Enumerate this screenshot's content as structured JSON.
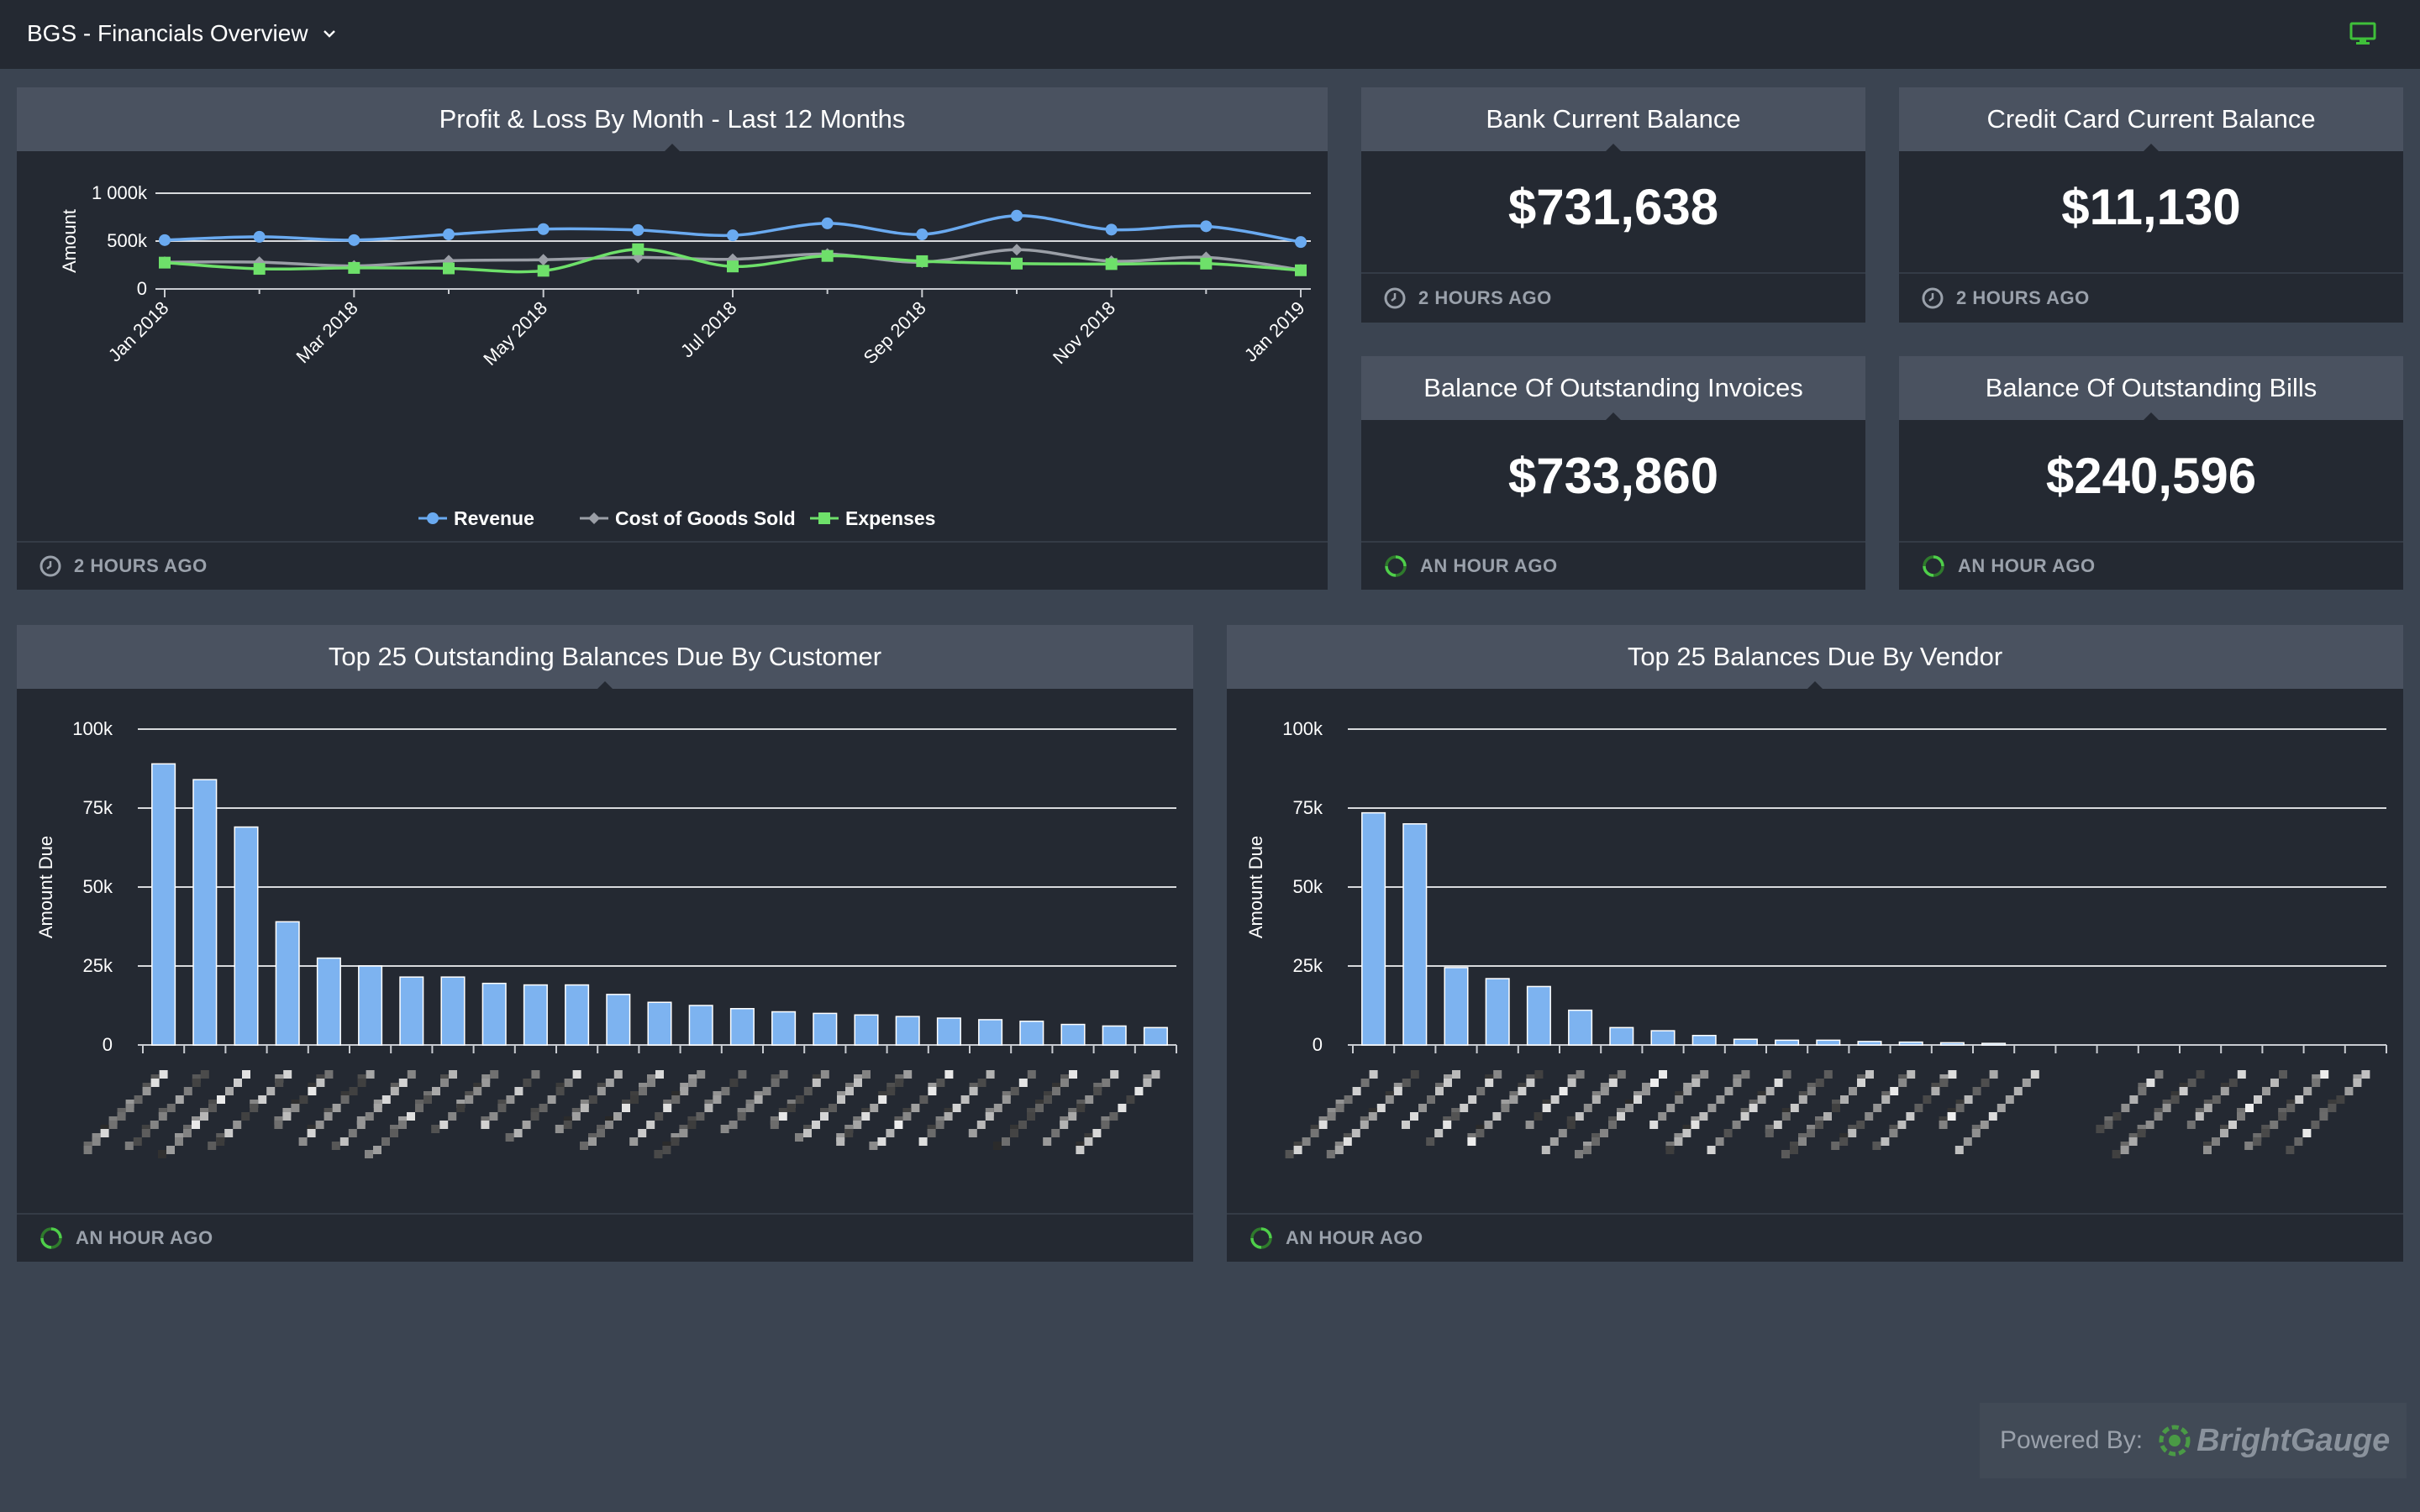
{
  "header": {
    "title": "BGS - Financials Overview"
  },
  "colors": {
    "revenue": "#6aaaf0",
    "cogs": "#9a9ea6",
    "expenses": "#6ee06a",
    "bars": "#7db3f0",
    "card_bg": "#242932",
    "header_bg": "#4a5260",
    "page_bg": "#3b4451",
    "refresh_green": "#4fcf4a"
  },
  "pl_card": {
    "title": "Profit & Loss By Month - Last 12 Months",
    "updated": "2 HOURS AGO",
    "ylabel": "Amount",
    "legend": [
      "Revenue",
      "Cost of Goods Sold",
      "Expenses"
    ]
  },
  "kpis": [
    {
      "title": "Bank Current Balance",
      "value": "$731,638",
      "updated": "2 HOURS AGO",
      "icon": "clock-icon"
    },
    {
      "title": "Credit Card Current Balance",
      "value": "$11,130",
      "updated": "2 HOURS AGO",
      "icon": "clock-icon"
    },
    {
      "title": "Balance Of Outstanding Invoices",
      "value": "$733,860",
      "updated": "AN HOUR AGO",
      "icon": "refresh-icon"
    },
    {
      "title": "Balance Of Outstanding Bills",
      "value": "$240,596",
      "updated": "AN HOUR AGO",
      "icon": "refresh-icon"
    }
  ],
  "customer_card": {
    "title": "Top 25 Outstanding Balances Due By Customer",
    "updated": "AN HOUR AGO",
    "ylabel": "Amount Due"
  },
  "vendor_card": {
    "title": "Top 25 Balances Due By Vendor",
    "updated": "AN HOUR AGO",
    "ylabel": "Amount Due"
  },
  "footer": {
    "powered_by": "Powered By:",
    "brand": "BrightGauge"
  },
  "chart_data": [
    {
      "type": "line",
      "title": "Profit & Loss By Month - Last 12 Months",
      "ylabel": "Amount",
      "xlabel": "",
      "ylim": [
        0,
        1000000
      ],
      "y_ticks": [
        "0",
        "500k",
        "1 000k"
      ],
      "y_tick_values": [
        0,
        500000,
        1000000
      ],
      "x": [
        "Jan 2018",
        "Feb 2018",
        "Mar 2018",
        "Apr 2018",
        "May 2018",
        "Jun 2018",
        "Jul 2018",
        "Aug 2018",
        "Sep 2018",
        "Oct 2018",
        "Nov 2018",
        "Dec 2018",
        "Jan 2019"
      ],
      "x_tick_labels": [
        "Jan 2018",
        "Mar 2018",
        "May 2018",
        "Jul 2018",
        "Sep 2018",
        "Nov 2018",
        "Jan 2019"
      ],
      "x_tick_index": [
        0,
        2,
        4,
        6,
        8,
        10,
        12
      ],
      "legend_position": "bottom",
      "grid": true,
      "series": [
        {
          "name": "Revenue",
          "marker": "circle",
          "values": [
            510000,
            545000,
            510000,
            570000,
            625000,
            615000,
            560000,
            685000,
            570000,
            765000,
            620000,
            655000,
            490000
          ]
        },
        {
          "name": "Cost of Goods Sold",
          "marker": "diamond",
          "values": [
            280000,
            280000,
            240000,
            295000,
            305000,
            330000,
            310000,
            365000,
            280000,
            410000,
            290000,
            330000,
            200000
          ]
        },
        {
          "name": "Expenses",
          "marker": "square",
          "values": [
            275000,
            210000,
            220000,
            215000,
            190000,
            415000,
            235000,
            345000,
            290000,
            265000,
            260000,
            265000,
            195000
          ]
        }
      ]
    },
    {
      "type": "bar",
      "title": "Top 25 Outstanding Balances Due By Customer",
      "ylabel": "Amount Due",
      "ylim": [
        0,
        100000
      ],
      "y_ticks": [
        "0",
        "25k",
        "50k",
        "75k",
        "100k"
      ],
      "y_tick_values": [
        0,
        25000,
        50000,
        75000,
        100000
      ],
      "grid": true,
      "values": [
        89000,
        84000,
        69000,
        39000,
        27500,
        25000,
        21500,
        21500,
        19500,
        19000,
        19000,
        16000,
        13500,
        12500,
        11500,
        10500,
        10000,
        9500,
        9000,
        8500,
        8000,
        7500,
        6500,
        6000,
        5500
      ]
    },
    {
      "type": "bar",
      "title": "Top 25 Balances Due By Vendor",
      "ylabel": "Amount Due",
      "ylim": [
        0,
        100000
      ],
      "y_ticks": [
        "0",
        "25k",
        "50k",
        "75k",
        "100k"
      ],
      "y_tick_values": [
        0,
        25000,
        50000,
        75000,
        100000
      ],
      "grid": true,
      "values": [
        73500,
        70000,
        24500,
        21000,
        18500,
        11000,
        5500,
        4500,
        3000,
        1800,
        1500,
        1500,
        1100,
        900,
        700,
        500,
        0,
        0,
        0,
        0,
        0,
        0,
        0,
        0,
        0
      ]
    }
  ]
}
